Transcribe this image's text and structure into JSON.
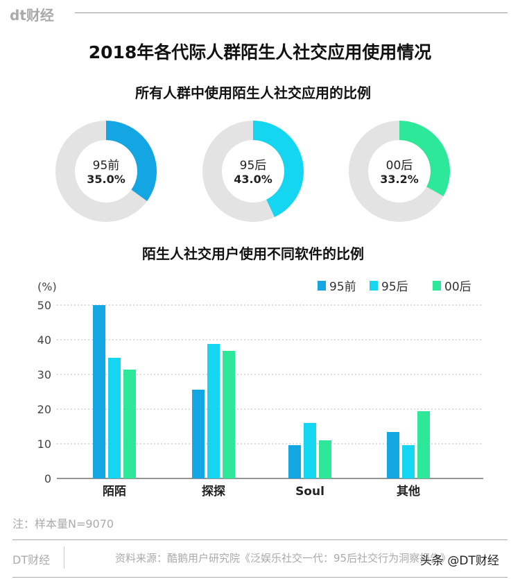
{
  "header": {
    "logo": "dt财经"
  },
  "title": "2018年各代际人群陌生人社交应用使用情况",
  "chart_data": [
    {
      "type": "pie",
      "subtype": "donut",
      "title": "所有人群中使用陌生人社交应用的比例",
      "items": [
        {
          "label": "95前",
          "value": 35.0,
          "value_label": "35.0%",
          "color": "#14a5e3"
        },
        {
          "label": "95后",
          "value": 43.0,
          "value_label": "43.0%",
          "color": "#14d6f0"
        },
        {
          "label": "00后",
          "value": 33.2,
          "value_label": "33.2%",
          "color": "#2ee89a"
        }
      ],
      "remainder_color": "#e3e3e3"
    },
    {
      "type": "bar",
      "title": "陌生人社交用户使用不同软件的比例",
      "ylabel": "(%)",
      "ylim": [
        0,
        50
      ],
      "yticks": [
        0,
        10,
        20,
        30,
        40,
        50
      ],
      "grid": true,
      "legend": "top-right",
      "categories": [
        "陌陌",
        "探探",
        "Soul",
        "其他"
      ],
      "series": [
        {
          "name": "95前",
          "color": "#14a5e3",
          "values": [
            50,
            25.6,
            9.6,
            13.4
          ]
        },
        {
          "name": "95后",
          "color": "#14d6f0",
          "values": [
            34.8,
            38.8,
            16,
            9.6
          ]
        },
        {
          "name": "00后",
          "color": "#2ee89a",
          "values": [
            31.4,
            36.8,
            11,
            19.4
          ]
        }
      ]
    }
  ],
  "footer": {
    "note": "注：样本量N=9070",
    "brand": "DT财经",
    "source": "资料来源：酷鹅用户研究院《泛娱乐社交一代：95后社交行为洞察报告》",
    "watermark": "头条 @DT财经"
  }
}
